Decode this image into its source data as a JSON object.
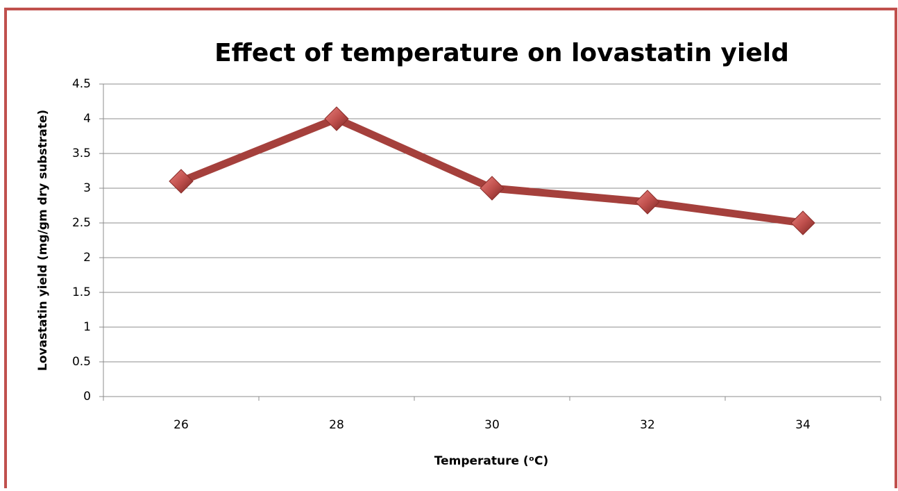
{
  "chart_data": {
    "type": "line",
    "title": "Effect of temperature on lovastatin yield",
    "x_label": "Temperature (ᵒC)",
    "y_label": "Lovastatin yield (mg/gm dry substrate)",
    "categories": [
      "26",
      "28",
      "30",
      "32",
      "34"
    ],
    "series": [
      {
        "name": "Lovastatin yield",
        "color": "#a5403c",
        "values": [
          3.1,
          4.0,
          3.0,
          2.8,
          2.5
        ]
      }
    ],
    "ylim": [
      0,
      4.5
    ],
    "yticks": [
      0,
      0.5,
      1,
      1.5,
      2,
      2.5,
      3,
      3.5,
      4,
      4.5
    ],
    "grid": true
  }
}
